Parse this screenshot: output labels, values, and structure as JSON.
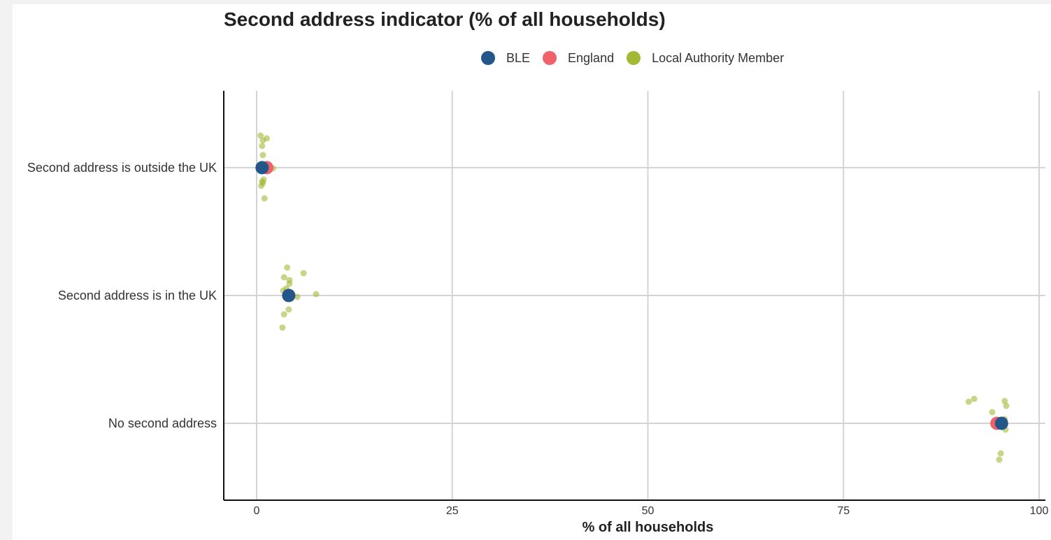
{
  "chart_data": {
    "type": "scatter",
    "title": "Second address indicator (% of all households)",
    "xlabel": "% of all households",
    "ylabel": "",
    "xlim": [
      0,
      100
    ],
    "x_ticks": [
      0,
      25,
      50,
      75,
      100
    ],
    "categories": [
      "Second address is outside the UK",
      "Second address is in the UK",
      "No second address"
    ],
    "grid": true,
    "legend_placement": "top-center",
    "series": [
      {
        "name": "BLE",
        "color": "#23578a",
        "points": [
          {
            "category": "Second address is outside the UK",
            "x": 0.7
          },
          {
            "category": "Second address is in the UK",
            "x": 4.1
          },
          {
            "category": "No second address",
            "x": 95.2
          }
        ]
      },
      {
        "name": "England",
        "color": "#f0626a",
        "points": [
          {
            "category": "Second address is outside the UK",
            "x": 1.3
          },
          {
            "category": "Second address is in the UK",
            "x": 4.1
          },
          {
            "category": "No second address",
            "x": 94.6
          }
        ]
      },
      {
        "name": "Local Authority Member",
        "color": "#a3b935",
        "points": [
          {
            "category": "Second address is outside the UK",
            "x": 0.5
          },
          {
            "category": "Second address is outside the UK",
            "x": 0.8
          },
          {
            "category": "Second address is outside the UK",
            "x": 1.3
          },
          {
            "category": "Second address is outside the UK",
            "x": 0.7
          },
          {
            "category": "Second address is outside the UK",
            "x": 0.8
          },
          {
            "category": "Second address is outside the UK",
            "x": 2.1
          },
          {
            "category": "Second address is outside the UK",
            "x": 0.9
          },
          {
            "category": "Second address is outside the UK",
            "x": 0.7
          },
          {
            "category": "Second address is outside the UK",
            "x": 0.6
          },
          {
            "category": "Second address is outside the UK",
            "x": 0.8
          },
          {
            "category": "Second address is outside the UK",
            "x": 1.0
          },
          {
            "category": "Second address is in the UK",
            "x": 3.9
          },
          {
            "category": "Second address is in the UK",
            "x": 3.5
          },
          {
            "category": "Second address is in the UK",
            "x": 4.2
          },
          {
            "category": "Second address is in the UK",
            "x": 4.2
          },
          {
            "category": "Second address is in the UK",
            "x": 7.6
          },
          {
            "category": "Second address is in the UK",
            "x": 5.2
          },
          {
            "category": "Second address is in the UK",
            "x": 3.4
          },
          {
            "category": "Second address is in the UK",
            "x": 3.8
          },
          {
            "category": "Second address is in the UK",
            "x": 4.1
          },
          {
            "category": "Second address is in the UK",
            "x": 3.5
          },
          {
            "category": "Second address is in the UK",
            "x": 3.3
          },
          {
            "category": "Second address is in the UK",
            "x": 6.0
          },
          {
            "category": "No second address",
            "x": 91.0
          },
          {
            "category": "No second address",
            "x": 91.7
          },
          {
            "category": "No second address",
            "x": 95.6
          },
          {
            "category": "No second address",
            "x": 95.8
          },
          {
            "category": "No second address",
            "x": 94.0
          },
          {
            "category": "No second address",
            "x": 95.6
          },
          {
            "category": "No second address",
            "x": 95.7
          },
          {
            "category": "No second address",
            "x": 95.1
          },
          {
            "category": "No second address",
            "x": 94.9
          },
          {
            "category": "No second address",
            "x": 94.8
          }
        ]
      }
    ]
  }
}
